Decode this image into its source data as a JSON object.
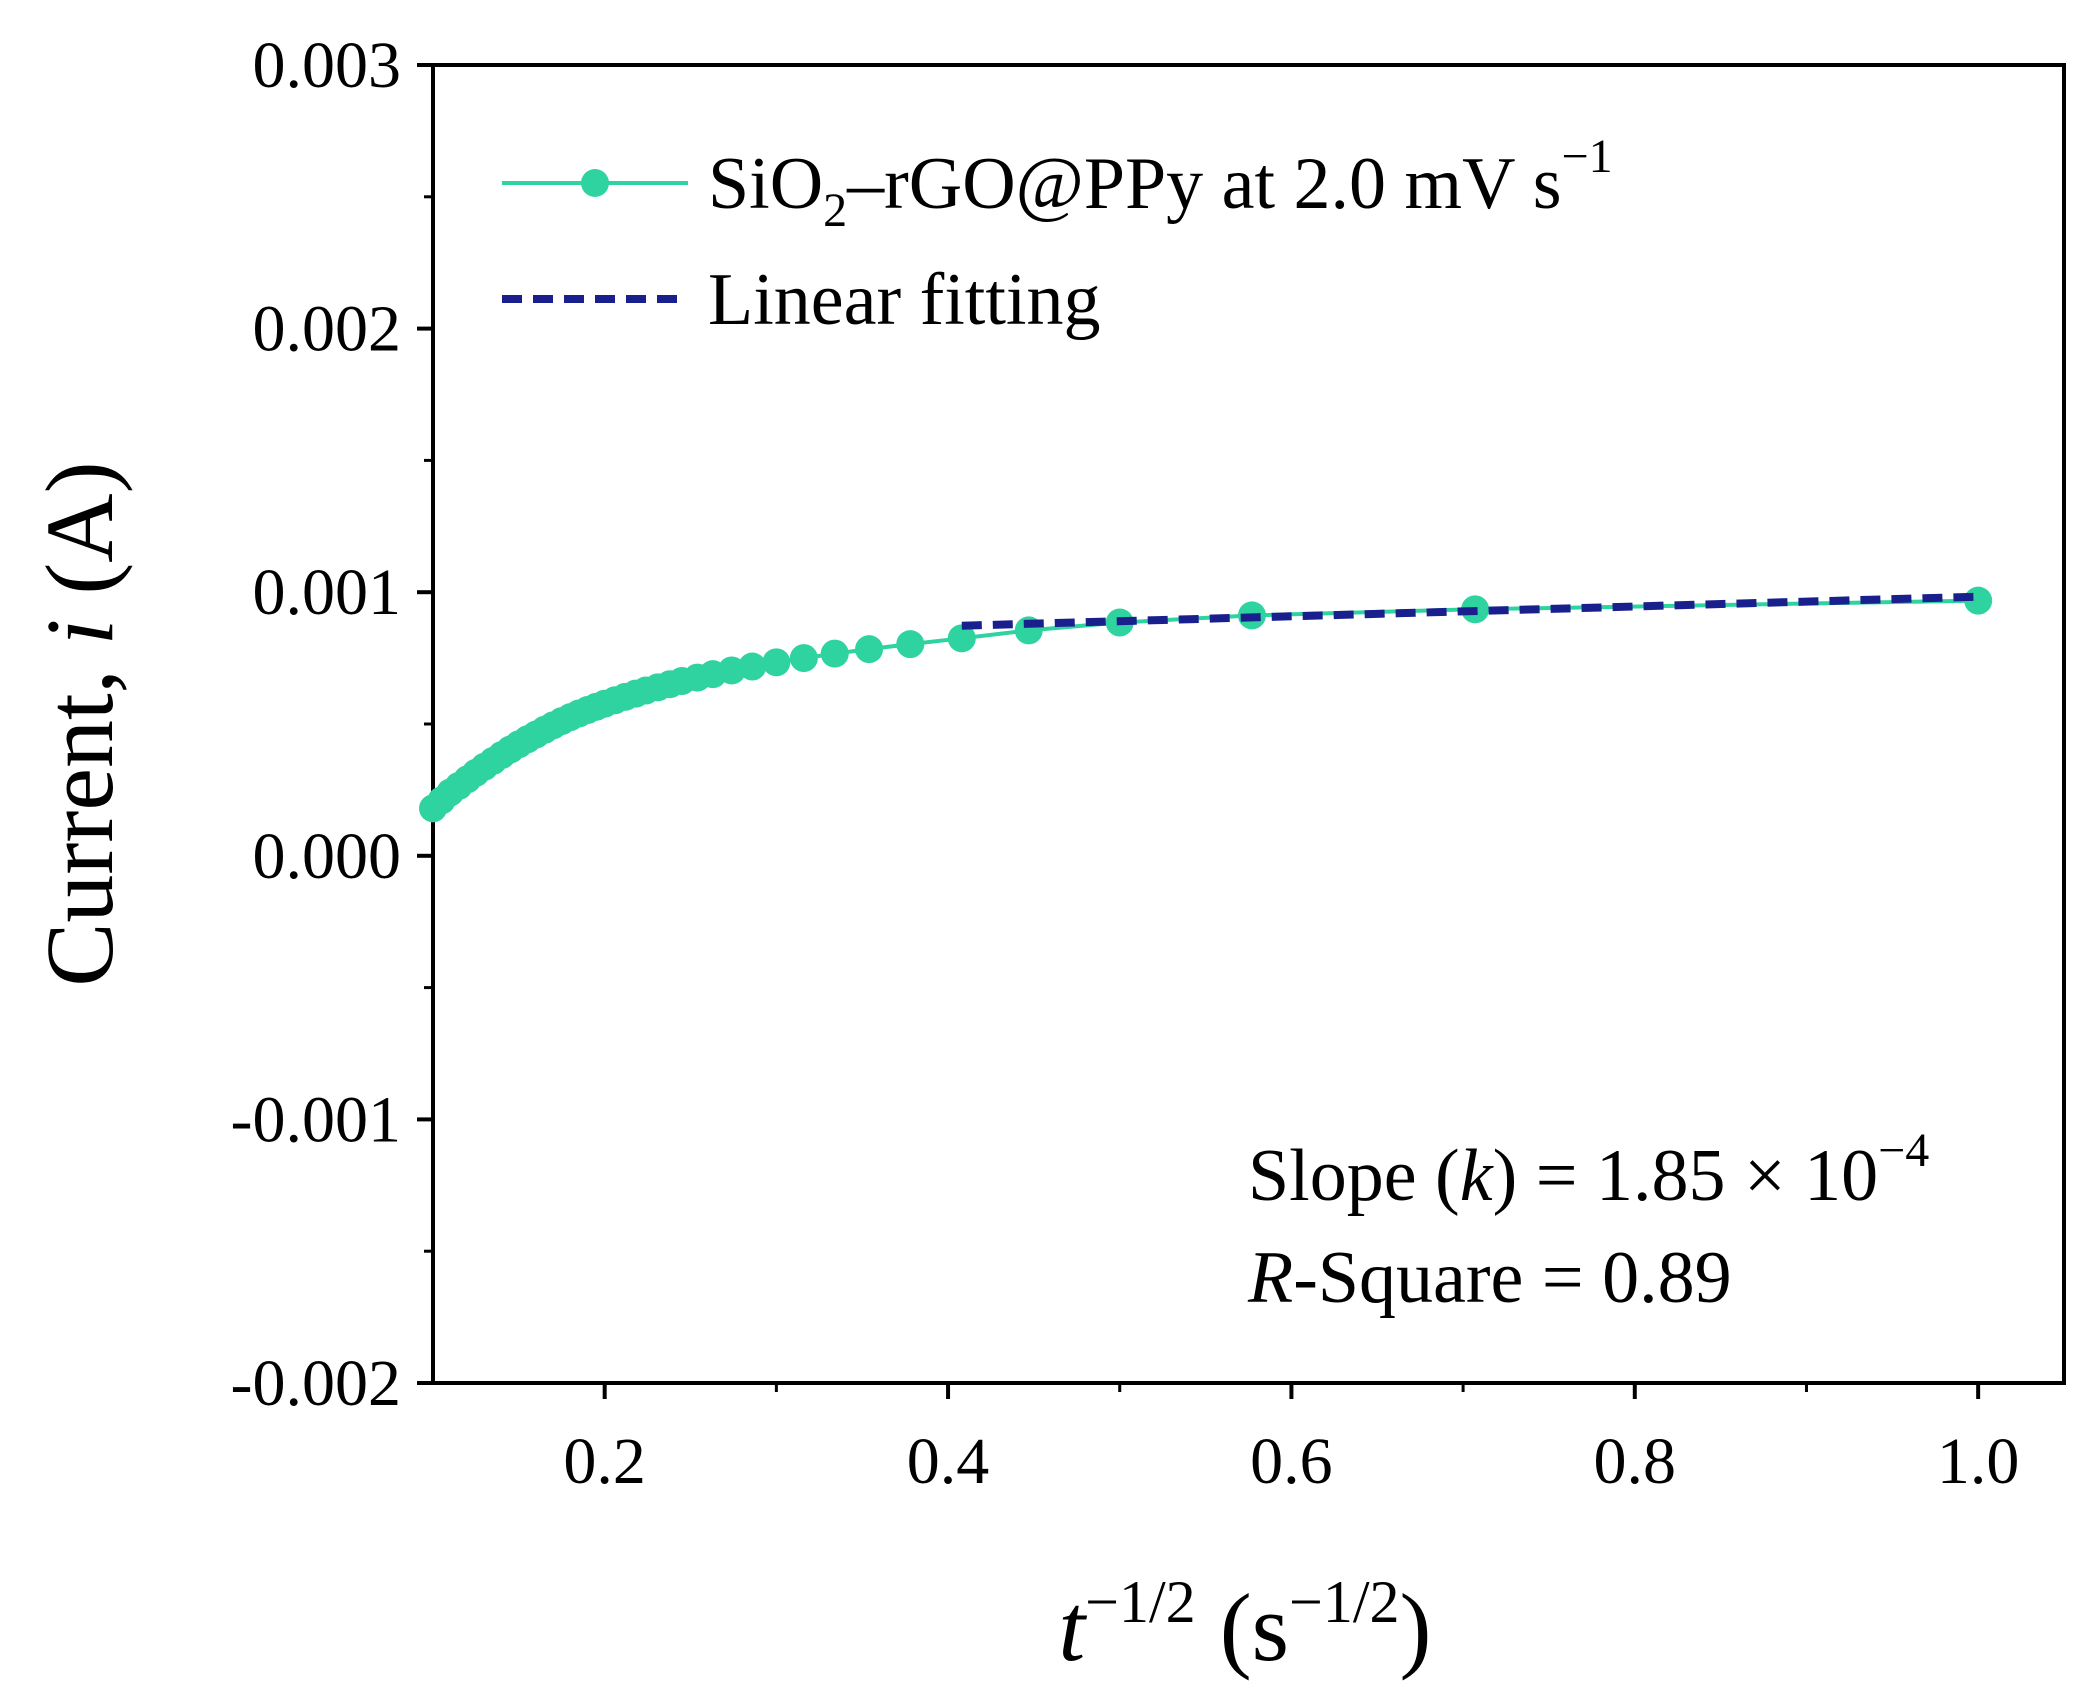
{
  "chart_data": {
    "type": "scatter",
    "xlabel": {
      "base": "t",
      "sup": "−1/2",
      "unit_open": " (s",
      "unit_sup": "−1/2",
      "unit_close": ")"
    },
    "ylabel": {
      "prefix": "Current, ",
      "var": "i",
      "suffix": " (A)"
    },
    "xlim": [
      0.1,
      1.05
    ],
    "ylim": [
      -0.002,
      0.003
    ],
    "xticks": [
      0.2,
      0.4,
      0.6,
      0.8,
      1.0
    ],
    "xtick_labels": [
      "0.2",
      "0.4",
      "0.6",
      "0.8",
      "1.0"
    ],
    "xminor": [
      0.3,
      0.5,
      0.7,
      0.9
    ],
    "yticks": [
      -0.002,
      -0.001,
      0.0,
      0.001,
      0.002,
      0.003
    ],
    "ytick_labels": [
      "-0.002",
      "-0.001",
      "0.000",
      "0.001",
      "0.002",
      "0.003"
    ],
    "yminor": [
      -0.0015,
      -0.0005,
      0.0005,
      0.0015,
      0.0025
    ],
    "series": [
      {
        "name": "SiO2–rGO@PPy at 2.0 mV s−1",
        "kind": "line-marker",
        "color": "#2ed3a0",
        "x": [
          0.1,
          0.105,
          0.11,
          0.115,
          0.12,
          0.125,
          0.13,
          0.135,
          0.14,
          0.145,
          0.15,
          0.155,
          0.16,
          0.165,
          0.17,
          0.175,
          0.18,
          0.185,
          0.19,
          0.195,
          0.2,
          0.206,
          0.212,
          0.218,
          0.224,
          0.231,
          0.238,
          0.245,
          0.254,
          0.263,
          0.274,
          0.286,
          0.3,
          0.316,
          0.334,
          0.354,
          0.378,
          0.408,
          0.447,
          0.5,
          0.577,
          0.707,
          1.0
        ],
        "y": [
          0.00018,
          0.00021,
          0.00024,
          0.000265,
          0.00029,
          0.000315,
          0.000338,
          0.00036,
          0.000382,
          0.000403,
          0.000423,
          0.000442,
          0.00046,
          0.000478,
          0.000495,
          0.000511,
          0.000526,
          0.00054,
          0.000553,
          0.000565,
          0.000577,
          0.00059,
          0.000603,
          0.000615,
          0.000627,
          0.000639,
          0.000651,
          0.000663,
          0.000676,
          0.000689,
          0.000703,
          0.000718,
          0.000734,
          0.00075,
          0.000767,
          0.000784,
          0.000803,
          0.000825,
          0.000855,
          0.000885,
          0.000912,
          0.000935,
          0.000968
        ]
      },
      {
        "name": "Linear fitting",
        "kind": "dashed-line",
        "color": "#1a1f8e",
        "x": [
          0.408,
          1.0
        ],
        "y": [
          0.000873,
          0.000983
        ]
      }
    ],
    "legend": {
      "position": "top-left",
      "entries": [
        {
          "text": "SiO",
          "sub": "2",
          "rest": "–rGO@PPy at 2.0 mV s",
          "sup": "−1"
        },
        {
          "text": "Linear fitting"
        }
      ]
    },
    "annotation": {
      "line1": {
        "pre": "Slope (",
        "var": "k",
        "mid": ") = 1.85 × 10",
        "sup": "−4"
      },
      "line2": {
        "var": "R",
        "rest": "-Square = 0.89"
      }
    }
  }
}
